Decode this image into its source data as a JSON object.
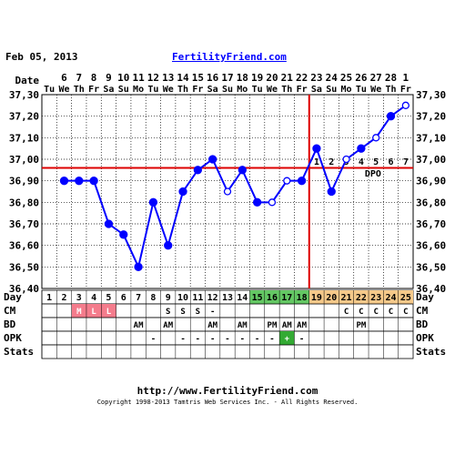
{
  "header": {
    "date": "Feb 05, 2013",
    "site": "FertilityFriend.com"
  },
  "footer": {
    "url": "http://www.FertilityFriend.com",
    "copyright": "Copyright 1998-2013 Tamtris Web Services Inc. - All Rights Reserved."
  },
  "labels": {
    "date": "Date",
    "day": "Day",
    "cm": "CM",
    "bd": "BD",
    "opk": "OPK",
    "stats": "Stats",
    "dpo": "DPO"
  },
  "chart_data": {
    "type": "line",
    "ylim": [
      36.4,
      37.3
    ],
    "yticks": [
      "37,30",
      "37,20",
      "37,10",
      "37,00",
      "36,90",
      "36,80",
      "36,70",
      "36,60",
      "36,50",
      "36,40"
    ],
    "dates": [
      "6",
      "7",
      "8",
      "9",
      "10",
      "11",
      "12",
      "13",
      "14",
      "15",
      "16",
      "17",
      "18",
      "19",
      "20",
      "21",
      "22",
      "23",
      "24",
      "25",
      "26",
      "27",
      "28",
      "1"
    ],
    "weekdays": [
      "Tu",
      "We",
      "Th",
      "Fr",
      "Sa",
      "Su",
      "Mo",
      "Tu",
      "We",
      "Th",
      "Fr",
      "Sa",
      "Su",
      "Mo",
      "Tu",
      "We",
      "Th",
      "Fr",
      "Sa",
      "Su",
      "Mo",
      "Tu",
      "We",
      "Th",
      "Fr"
    ],
    "date_first": "5",
    "days": [
      "1",
      "2",
      "3",
      "4",
      "5",
      "6",
      "7",
      "8",
      "9",
      "10",
      "11",
      "12",
      "13",
      "14",
      "15",
      "16",
      "17",
      "18",
      "19",
      "20",
      "21",
      "22",
      "23",
      "24",
      "25"
    ],
    "temperatures": [
      null,
      36.9,
      36.9,
      36.9,
      36.7,
      36.65,
      36.5,
      36.8,
      36.6,
      36.85,
      36.95,
      37.0,
      36.85,
      36.95,
      36.8,
      36.8,
      36.9,
      36.9,
      37.05,
      36.85,
      37.0,
      37.05,
      37.1,
      37.2,
      37.25
    ],
    "open_points": [
      12,
      15,
      16,
      20,
      22,
      24
    ],
    "coverline": 36.96,
    "ovulation_after_day": 18,
    "dpo": [
      "1",
      "2",
      "3",
      "4",
      "5",
      "6",
      "7"
    ],
    "cm": [
      "",
      "",
      "M",
      "L",
      "L",
      "",
      "",
      "",
      "",
      "",
      "",
      "",
      "",
      "",
      "",
      "",
      "",
      "",
      "",
      "",
      "C",
      "C",
      "C",
      "C",
      "C"
    ],
    "bd": [
      "",
      "",
      "",
      "",
      "",
      "",
      "AM",
      "",
      "AM",
      "",
      "",
      "AM",
      "",
      "AM",
      "",
      "PM",
      "AM",
      "AM",
      "",
      "",
      "",
      "PM",
      "",
      "",
      ""
    ],
    "opk": [
      "",
      "",
      "",
      "",
      "",
      "",
      "",
      "-",
      "",
      "-",
      "-",
      "-",
      "-",
      "-",
      "-",
      "-",
      "+",
      "-",
      "",
      "",
      "",
      "",
      "",
      "",
      ""
    ],
    "sleep": [
      "",
      "",
      "",
      "",
      "",
      "",
      "",
      "",
      "S",
      "S",
      "S",
      "-",
      "",
      "",
      "",
      "",
      "",
      "",
      "",
      "",
      "",
      "",
      "",
      "",
      ""
    ],
    "colors": {
      "line": "#0000ff",
      "coverline": "#dd0000",
      "ovulation_line": "#dd0000",
      "mens_pink": "#f47c8c",
      "fertile_green": "#64c864",
      "luteal_tan": "#f5c98a",
      "opk_positive": "#33aa33",
      "grid": "#000000"
    }
  }
}
